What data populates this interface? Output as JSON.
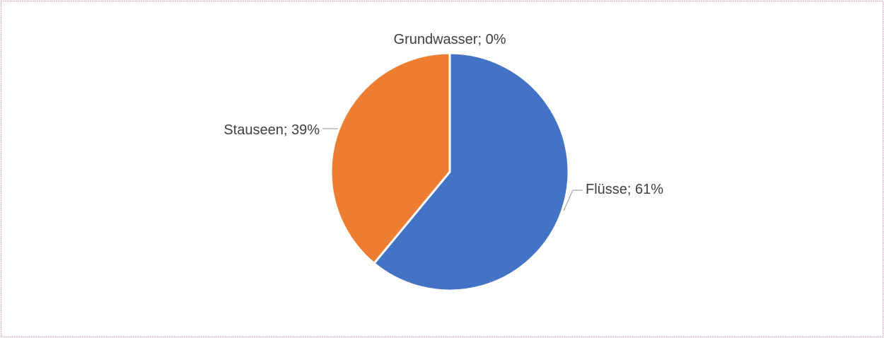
{
  "chart_data": {
    "type": "pie",
    "categories": [
      "Flüsse",
      "Stauseen",
      "Grundwasser"
    ],
    "values": [
      61,
      39,
      0
    ],
    "value_labels": [
      "61%",
      "39%",
      "0%"
    ],
    "label_separator": "; ",
    "colors": [
      "#4472c4",
      "#ed7d31",
      "#a5a5a5"
    ]
  }
}
